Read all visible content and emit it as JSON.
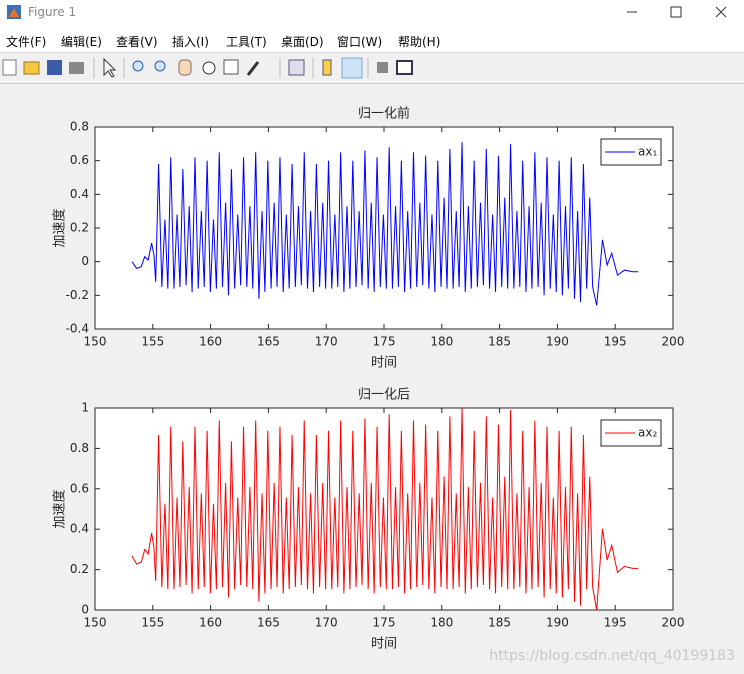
{
  "window": {
    "title": "Figure 1",
    "menu": [
      "文件(F)",
      "编辑(E)",
      "查看(V)",
      "插入(I)",
      "工具(T)",
      "桌面(D)",
      "窗口(W)",
      "帮助(H)"
    ]
  },
  "chart_data": [
    {
      "type": "line",
      "title": "归一化前",
      "x_label": "时间",
      "y_label": "加速度",
      "x": [
        153.2,
        153.6,
        154.0,
        154.3,
        154.6,
        154.9,
        155.1,
        155.25,
        155.5,
        155.78,
        156.05,
        156.3,
        156.55,
        156.83,
        157.1,
        157.35,
        157.6,
        157.88,
        158.15,
        158.4,
        158.65,
        158.93,
        159.2,
        159.45,
        159.7,
        159.98,
        160.25,
        160.5,
        160.75,
        161.03,
        161.3,
        161.55,
        161.8,
        162.08,
        162.35,
        162.6,
        162.85,
        163.13,
        163.4,
        163.65,
        163.9,
        164.18,
        164.45,
        164.7,
        164.95,
        165.23,
        165.5,
        165.75,
        166.0,
        166.28,
        166.55,
        166.8,
        167.05,
        167.33,
        167.6,
        167.85,
        168.1,
        168.38,
        168.65,
        168.9,
        169.15,
        169.43,
        169.7,
        169.95,
        170.2,
        170.48,
        170.75,
        171.0,
        171.25,
        171.53,
        171.8,
        172.05,
        172.3,
        172.58,
        172.85,
        173.1,
        173.35,
        173.63,
        173.9,
        174.15,
        174.4,
        174.68,
        174.95,
        175.2,
        175.45,
        175.73,
        176.0,
        176.25,
        176.5,
        176.78,
        177.05,
        177.3,
        177.55,
        177.83,
        178.1,
        178.35,
        178.6,
        178.88,
        179.15,
        179.4,
        179.65,
        179.93,
        180.2,
        180.45,
        180.7,
        180.98,
        181.25,
        181.5,
        181.75,
        182.03,
        182.3,
        182.55,
        182.8,
        183.08,
        183.35,
        183.6,
        183.85,
        184.13,
        184.4,
        184.65,
        184.9,
        185.18,
        185.45,
        185.7,
        185.95,
        186.23,
        186.5,
        186.75,
        187.0,
        187.28,
        187.55,
        187.8,
        188.05,
        188.33,
        188.6,
        188.85,
        189.1,
        189.38,
        189.65,
        189.9,
        190.15,
        190.43,
        190.7,
        190.95,
        191.2,
        191.48,
        191.75,
        192.0,
        192.25,
        192.53,
        192.8,
        193.05,
        193.4,
        193.9,
        194.3,
        194.7,
        195.2,
        195.8,
        196.5,
        197.0
      ],
      "series": [
        {
          "name": "ax₁",
          "color": "#0000ff",
          "values": [
            0,
            -0.04,
            -0.03,
            0.03,
            0.01,
            0.11,
            0.04,
            -0.12,
            0.58,
            -0.15,
            0.25,
            -0.16,
            0.62,
            -0.16,
            0.28,
            -0.15,
            0.55,
            -0.14,
            0.33,
            -0.18,
            0.62,
            -0.16,
            0.3,
            -0.15,
            0.6,
            -0.18,
            0.25,
            -0.16,
            0.65,
            -0.15,
            0.35,
            -0.2,
            0.55,
            -0.16,
            0.28,
            -0.14,
            0.62,
            -0.15,
            0.33,
            -0.16,
            0.65,
            -0.22,
            0.3,
            -0.18,
            0.6,
            -0.16,
            0.35,
            -0.15,
            0.62,
            -0.18,
            0.28,
            -0.16,
            0.58,
            -0.15,
            0.33,
            -0.14,
            0.65,
            -0.16,
            0.3,
            -0.18,
            0.58,
            -0.15,
            0.35,
            -0.16,
            0.6,
            -0.16,
            0.28,
            -0.15,
            0.65,
            -0.18,
            0.33,
            -0.16,
            0.6,
            -0.15,
            0.3,
            -0.14,
            0.66,
            -0.16,
            0.35,
            -0.18,
            0.62,
            -0.15,
            0.28,
            -0.16,
            0.68,
            -0.16,
            0.33,
            -0.15,
            0.6,
            -0.18,
            0.3,
            -0.16,
            0.65,
            -0.15,
            0.35,
            -0.14,
            0.63,
            -0.16,
            0.28,
            -0.18,
            0.6,
            -0.15,
            0.38,
            -0.16,
            0.67,
            -0.16,
            0.3,
            -0.15,
            0.71,
            -0.18,
            0.33,
            -0.16,
            0.6,
            -0.15,
            0.35,
            -0.14,
            0.67,
            -0.16,
            0.28,
            -0.18,
            0.63,
            -0.15,
            0.38,
            -0.16,
            0.7,
            -0.16,
            0.3,
            -0.15,
            0.6,
            -0.18,
            0.33,
            -0.16,
            0.65,
            -0.15,
            0.35,
            -0.2,
            0.62,
            -0.16,
            0.28,
            -0.18,
            0.6,
            -0.2,
            0.33,
            -0.16,
            0.62,
            -0.22,
            0.3,
            -0.24,
            0.58,
            -0.16,
            0.38,
            -0.15,
            -0.26,
            0.13,
            -0.02,
            0.05,
            -0.08,
            -0.05,
            -0.06,
            -0.06
          ]
        }
      ],
      "xlim": [
        150,
        200
      ],
      "xticks": [
        150,
        155,
        160,
        165,
        170,
        175,
        180,
        185,
        190,
        195,
        200
      ],
      "ylim": [
        -0.4,
        0.8
      ],
      "yticks": [
        -0.4,
        -0.2,
        0,
        0.2,
        0.4,
        0.6,
        0.8
      ],
      "legend": "upper right",
      "grid": false
    },
    {
      "type": "line",
      "title": "归一化后",
      "x_label": "时间",
      "y_label": "加速度",
      "x": [
        153.2,
        153.6,
        154.0,
        154.3,
        154.6,
        154.9,
        155.1,
        155.25,
        155.5,
        155.78,
        156.05,
        156.3,
        156.55,
        156.83,
        157.1,
        157.35,
        157.6,
        157.88,
        158.15,
        158.4,
        158.65,
        158.93,
        159.2,
        159.45,
        159.7,
        159.98,
        160.25,
        160.5,
        160.75,
        161.03,
        161.3,
        161.55,
        161.8,
        162.08,
        162.35,
        162.6,
        162.85,
        163.13,
        163.4,
        163.65,
        163.9,
        164.18,
        164.45,
        164.7,
        164.95,
        165.23,
        165.5,
        165.75,
        166.0,
        166.28,
        166.55,
        166.8,
        167.05,
        167.33,
        167.6,
        167.85,
        168.1,
        168.38,
        168.65,
        168.9,
        169.15,
        169.43,
        169.7,
        169.95,
        170.2,
        170.48,
        170.75,
        171.0,
        171.25,
        171.53,
        171.8,
        172.05,
        172.3,
        172.58,
        172.85,
        173.1,
        173.35,
        173.63,
        173.9,
        174.15,
        174.4,
        174.68,
        174.95,
        175.2,
        175.45,
        175.73,
        176.0,
        176.25,
        176.5,
        176.78,
        177.05,
        177.3,
        177.55,
        177.83,
        178.1,
        178.35,
        178.6,
        178.88,
        179.15,
        179.4,
        179.65,
        179.93,
        180.2,
        180.45,
        180.7,
        180.98,
        181.25,
        181.5,
        181.75,
        182.03,
        182.3,
        182.55,
        182.8,
        183.08,
        183.35,
        183.6,
        183.85,
        184.13,
        184.4,
        184.65,
        184.9,
        185.18,
        185.45,
        185.7,
        185.95,
        186.23,
        186.5,
        186.75,
        187.0,
        187.28,
        187.55,
        187.8,
        188.05,
        188.33,
        188.6,
        188.85,
        189.1,
        189.38,
        189.65,
        189.9,
        190.15,
        190.43,
        190.7,
        190.95,
        191.2,
        191.48,
        191.75,
        192.0,
        192.25,
        192.53,
        192.8,
        193.05,
        193.4,
        193.9,
        194.3,
        194.7,
        195.2,
        195.8,
        196.5,
        197.0
      ],
      "series": [
        {
          "name": "ax₂",
          "color": "#ff0000",
          "values": [
            0.268,
            0.227,
            0.237,
            0.299,
            0.278,
            0.381,
            0.309,
            0.144,
            0.866,
            0.113,
            0.526,
            0.103,
            0.907,
            0.103,
            0.557,
            0.113,
            0.835,
            0.124,
            0.608,
            0.082,
            0.907,
            0.103,
            0.577,
            0.113,
            0.887,
            0.082,
            0.526,
            0.103,
            0.938,
            0.113,
            0.629,
            0.062,
            0.835,
            0.103,
            0.557,
            0.124,
            0.907,
            0.113,
            0.608,
            0.103,
            0.938,
            0.041,
            0.577,
            0.082,
            0.887,
            0.103,
            0.629,
            0.113,
            0.907,
            0.082,
            0.557,
            0.103,
            0.866,
            0.113,
            0.608,
            0.124,
            0.938,
            0.103,
            0.577,
            0.082,
            0.866,
            0.113,
            0.629,
            0.103,
            0.887,
            0.103,
            0.557,
            0.113,
            0.938,
            0.082,
            0.608,
            0.103,
            0.887,
            0.113,
            0.577,
            0.124,
            0.948,
            0.103,
            0.629,
            0.082,
            0.907,
            0.113,
            0.557,
            0.103,
            0.969,
            0.103,
            0.608,
            0.113,
            0.887,
            0.082,
            0.577,
            0.103,
            0.938,
            0.113,
            0.629,
            0.124,
            0.918,
            0.103,
            0.557,
            0.082,
            0.887,
            0.113,
            0.66,
            0.103,
            0.959,
            0.103,
            0.577,
            0.113,
            1,
            0.082,
            0.608,
            0.103,
            0.887,
            0.113,
            0.629,
            0.124,
            0.959,
            0.103,
            0.557,
            0.082,
            0.918,
            0.113,
            0.66,
            0.103,
            0.99,
            0.103,
            0.577,
            0.113,
            0.887,
            0.082,
            0.608,
            0.103,
            0.938,
            0.113,
            0.629,
            0.062,
            0.907,
            0.103,
            0.557,
            0.082,
            0.887,
            0.062,
            0.608,
            0.103,
            0.907,
            0.041,
            0.577,
            0.021,
            0.866,
            0.103,
            0.66,
            0.113,
            0,
            0.402,
            0.247,
            0.32,
            0.186,
            0.216,
            0.206,
            0.206
          ]
        }
      ],
      "xlim": [
        150,
        200
      ],
      "xticks": [
        150,
        155,
        160,
        165,
        170,
        175,
        180,
        185,
        190,
        195,
        200
      ],
      "ylim": [
        0,
        1
      ],
      "yticks": [
        0,
        0.2,
        0.4,
        0.6,
        0.8,
        1
      ],
      "legend": "upper right",
      "grid": false
    }
  ],
  "watermark": "https://blog.csdn.net/qq_40199183"
}
